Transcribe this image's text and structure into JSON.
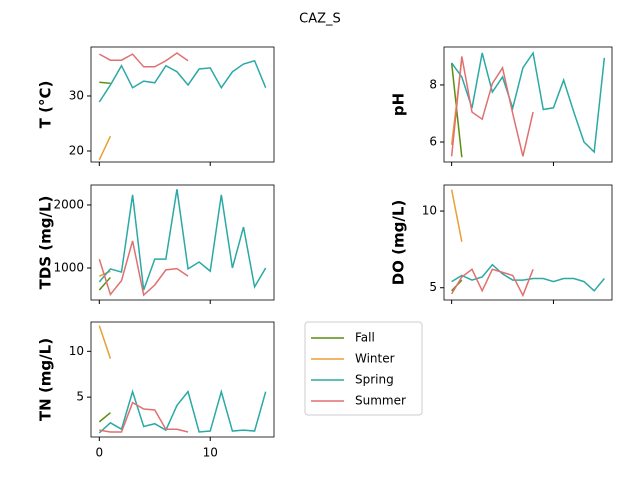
{
  "title": "CAZ_S",
  "chart_data": [
    {
      "type": "line",
      "ylabel": "T  (°C)",
      "xlim": [
        -0.75,
        15.75
      ],
      "xticks": [
        0,
        10
      ],
      "ylim": [
        18,
        38.9
      ],
      "yticks": [
        20,
        30
      ],
      "series": [
        {
          "name": "Fall",
          "color": "#5b8f0f",
          "x": [
            0,
            1
          ],
          "values": [
            32.5,
            32.3
          ]
        },
        {
          "name": "Winter",
          "color": "#e8a033",
          "x": [
            0,
            1
          ],
          "values": [
            18.4,
            22.7
          ]
        },
        {
          "name": "Spring",
          "color": "#2aa9a6",
          "x": [
            0,
            1,
            2,
            3,
            4,
            5,
            6,
            7,
            8,
            9,
            10,
            11,
            12,
            13,
            14,
            15
          ],
          "values": [
            28.9,
            32,
            35.5,
            31.5,
            32.7,
            32.4,
            35.5,
            34.4,
            32,
            34.9,
            35.1,
            31.5,
            34.4,
            35.8,
            36.4,
            31.5
          ]
        },
        {
          "name": "Summer",
          "color": "#e07070",
          "x": [
            0,
            1,
            2,
            3,
            4,
            5,
            6,
            7,
            8
          ],
          "values": [
            37.6,
            36.5,
            36.5,
            37.6,
            35.3,
            35.3,
            36.4,
            37.8,
            36.4
          ]
        }
      ]
    },
    {
      "type": "line",
      "ylabel": "pH",
      "xlim": [
        -0.75,
        15.75
      ],
      "xticks": [
        0,
        10
      ],
      "ylim": [
        5.3,
        9.33
      ],
      "yticks": [
        6,
        8
      ],
      "series": [
        {
          "name": "Fall",
          "color": "#5b8f0f",
          "x": [
            0,
            1
          ],
          "values": [
            8.77,
            5.47
          ]
        },
        {
          "name": "Winter",
          "color": "#e8a033",
          "x": [
            0,
            1
          ],
          "values": [
            5.9,
            8.9
          ]
        },
        {
          "name": "Spring",
          "color": "#2aa9a6",
          "x": [
            0,
            1,
            2,
            3,
            4,
            5,
            6,
            7,
            8,
            9,
            10,
            11,
            12,
            13,
            14,
            15
          ],
          "values": [
            8.77,
            8.28,
            7.19,
            9.12,
            7.75,
            8.28,
            7.19,
            8.6,
            9.12,
            7.14,
            7.2,
            8.17,
            7.05,
            6,
            5.65,
            8.95
          ]
        },
        {
          "name": "Summer",
          "color": "#e07070",
          "x": [
            0,
            1,
            2,
            3,
            4,
            5,
            6,
            7,
            8
          ],
          "values": [
            5.5,
            9.0,
            7.05,
            6.8,
            8.05,
            8.6,
            7.0,
            5.5,
            7.05
          ]
        }
      ]
    },
    {
      "type": "line",
      "ylabel": "TDS (mg/L)",
      "xlim": [
        -0.75,
        15.75
      ],
      "xticks": [
        0,
        10
      ],
      "ylim": [
        492,
        2317
      ],
      "yticks": [
        1000,
        2000
      ],
      "series": [
        {
          "name": "Fall",
          "color": "#5b8f0f",
          "x": [
            0,
            1
          ],
          "values": [
            650,
            850
          ]
        },
        {
          "name": "Winter",
          "color": "#e8a033",
          "x": [
            0,
            1
          ],
          "values": [
            870,
            950
          ]
        },
        {
          "name": "Spring",
          "color": "#2aa9a6",
          "x": [
            0,
            1,
            2,
            3,
            4,
            5,
            6,
            7,
            8,
            9,
            10,
            11,
            12,
            13,
            14,
            15
          ],
          "values": [
            780,
            985,
            935,
            2160,
            650,
            1140,
            1140,
            2250,
            985,
            1095,
            950,
            2160,
            1000,
            1650,
            700,
            1000
          ]
        },
        {
          "name": "Summer",
          "color": "#e07070",
          "x": [
            0,
            1,
            2,
            3,
            4,
            5,
            6,
            7,
            8
          ],
          "values": [
            1140,
            580,
            800,
            1430,
            570,
            730,
            970,
            990,
            870
          ]
        }
      ]
    },
    {
      "type": "line",
      "ylabel": "DO (mg/L)",
      "xlim": [
        -0.75,
        15.75
      ],
      "xticks": [
        0,
        10
      ],
      "ylim": [
        4.2,
        11.7
      ],
      "yticks": [
        5,
        10
      ],
      "series": [
        {
          "name": "Fall",
          "color": "#5b8f0f",
          "x": [
            0,
            1
          ],
          "values": [
            4.8,
            5.5
          ]
        },
        {
          "name": "Winter",
          "color": "#e8a033",
          "x": [
            0,
            1
          ],
          "values": [
            11.4,
            8.0
          ]
        },
        {
          "name": "Spring",
          "color": "#2aa9a6",
          "x": [
            0,
            1,
            2,
            3,
            4,
            5,
            6,
            7,
            8,
            9,
            10,
            11,
            12,
            13,
            14,
            15
          ],
          "values": [
            5.4,
            5.8,
            5.5,
            5.7,
            6.5,
            5.9,
            5.5,
            5.5,
            5.6,
            5.6,
            5.4,
            5.6,
            5.6,
            5.4,
            4.8,
            5.6
          ]
        },
        {
          "name": "Summer",
          "color": "#e07070",
          "x": [
            0,
            1,
            2,
            3,
            4,
            5,
            6,
            7,
            8
          ],
          "values": [
            4.6,
            5.7,
            6.2,
            4.8,
            6.2,
            6.0,
            5.8,
            4.5,
            6.2
          ]
        }
      ]
    },
    {
      "type": "line",
      "ylabel": "TN (mg/L)",
      "xlim": [
        -0.75,
        15.75
      ],
      "xticks": [
        0,
        10
      ],
      "ylim": [
        0.65,
        13.2
      ],
      "yticks": [
        5,
        10
      ],
      "series": [
        {
          "name": "Fall",
          "color": "#5b8f0f",
          "x": [
            0,
            1
          ],
          "values": [
            2.3,
            3.3
          ]
        },
        {
          "name": "Winter",
          "color": "#e8a033",
          "x": [
            0,
            1
          ],
          "values": [
            12.8,
            9.2
          ]
        },
        {
          "name": "Spring",
          "color": "#2aa9a6",
          "x": [
            0,
            1,
            2,
            3,
            4,
            5,
            6,
            7,
            8,
            9,
            10,
            11,
            12,
            13,
            14,
            15
          ],
          "values": [
            1.1,
            2.2,
            1.5,
            5.6,
            1.8,
            2.1,
            1.4,
            4.1,
            5.6,
            1.2,
            1.3,
            5.6,
            1.3,
            1.4,
            1.3,
            5.6
          ]
        },
        {
          "name": "Summer",
          "color": "#e07070",
          "x": [
            0,
            1,
            2,
            3,
            4,
            5,
            6,
            7,
            8
          ],
          "values": [
            1.4,
            1.2,
            1.2,
            4.4,
            3.7,
            3.6,
            1.5,
            1.5,
            1.2
          ]
        }
      ]
    }
  ]
}
